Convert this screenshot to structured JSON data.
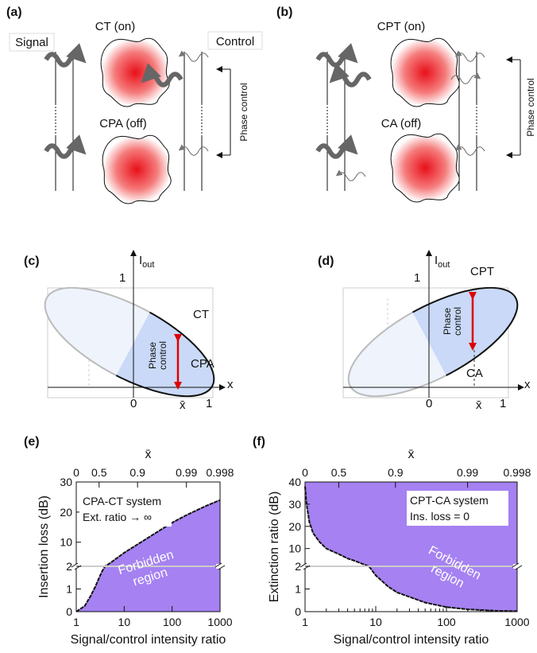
{
  "panel_a": {
    "label": "(a)",
    "top_state": "CT (on)",
    "bottom_state": "CPA (off)",
    "signal": "Signal",
    "control": "Control",
    "phase_control": "Phase control"
  },
  "panel_b": {
    "label": "(b)",
    "top_state": "CPT (on)",
    "bottom_state": "CA (off)",
    "phase_control": "Phase control"
  },
  "panel_c": {
    "label": "(c)",
    "y_axis": "I",
    "y_axis_sub": "out",
    "x_axis": "x",
    "y_one": "1",
    "x_zero": "0",
    "x_bar": "x̄",
    "x_one": "1",
    "top_point": "CT",
    "bottom_point": "CPA",
    "arrow_label_lines": [
      "Phase",
      "control"
    ]
  },
  "panel_d": {
    "label": "(d)",
    "y_axis": "I",
    "y_axis_sub": "out",
    "x_axis": "x",
    "y_one": "1",
    "x_zero": "0",
    "x_bar": "x̄",
    "x_one": "1",
    "top_point": "CPT",
    "bottom_point": "CA",
    "arrow_label_lines": [
      "Phase",
      "control"
    ]
  },
  "chart_data": [
    {
      "type": "area",
      "panel_label": "(e)",
      "fill": "below",
      "color": "#a581f2",
      "x_label": "Signal/control intensity ratio",
      "y_label": "Insertion loss (dB)",
      "x2_label": "x̄",
      "x": [
        1,
        1.5,
        2,
        2.5,
        3,
        3.5,
        4,
        5,
        10,
        20,
        50,
        100,
        200,
        500,
        1000
      ],
      "values": [
        0,
        0.25,
        0.7,
        1.1,
        1.5,
        1.8,
        2.0,
        3,
        6.5,
        9.5,
        13.5,
        16.5,
        19,
        22,
        24
      ],
      "xlim": [
        1,
        1000
      ],
      "xticks": [
        1,
        10,
        100,
        1000
      ],
      "log_x": true,
      "x2ticks": [
        0,
        0.5,
        0.9,
        0.99,
        0.998
      ],
      "ylim": [
        0,
        30
      ],
      "yticks": [
        0,
        1,
        2,
        10,
        20,
        30
      ],
      "y_break": 2,
      "annotations": [
        "CPA-CT system",
        "Ext. ratio → ∞"
      ],
      "region_label": [
        "Forbidden",
        "region"
      ]
    },
    {
      "type": "area",
      "panel_label": "(f)",
      "fill": "above",
      "color": "#a581f2",
      "x_label": "Signal/control intensity ratio",
      "y_label": "Extinction ratio (dB)",
      "x2_label": "x̄",
      "x": [
        1,
        1.05,
        1.15,
        1.3,
        1.6,
        2,
        3,
        4,
        5,
        6,
        7,
        8,
        10,
        15,
        20,
        50,
        100,
        200,
        500,
        1000
      ],
      "values": [
        38,
        30,
        22,
        17,
        13,
        10,
        7.5,
        5.5,
        4.5,
        3.5,
        2.7,
        2.0,
        1.6,
        1.1,
        0.85,
        0.4,
        0.2,
        0.1,
        0.04,
        0.02
      ],
      "xlim": [
        1,
        1000
      ],
      "xticks": [
        1,
        10,
        100,
        1000
      ],
      "log_x": true,
      "x2ticks": [
        0,
        0.5,
        0.9,
        0.99,
        0.998
      ],
      "ylim": [
        0,
        40
      ],
      "yticks": [
        0,
        1,
        2,
        10,
        20,
        30,
        40
      ],
      "y_break": 2,
      "annotations": [
        "CPT-CA system",
        "Ins. loss = 0"
      ],
      "region_label": [
        "Forbidden",
        "region"
      ]
    }
  ]
}
